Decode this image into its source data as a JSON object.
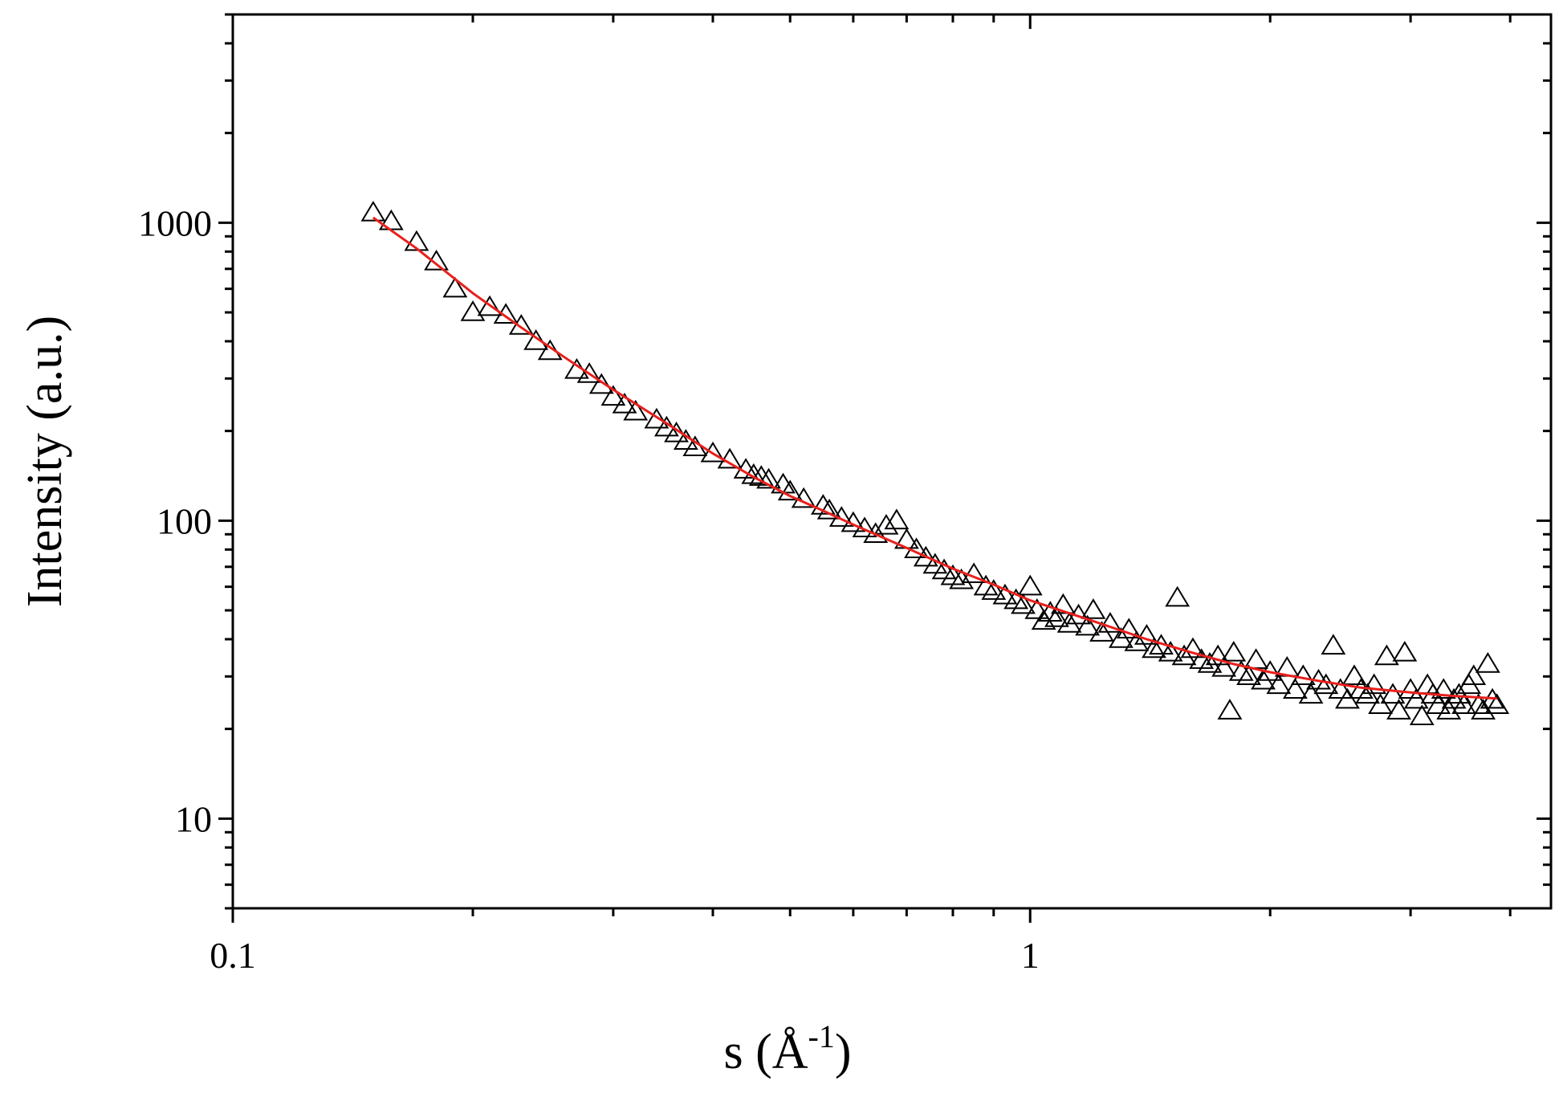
{
  "chart_data": {
    "type": "scatter",
    "title": "",
    "xlabel": "s (Å",
    "xlabel_sup": "-1",
    "xlabel_close": ")",
    "ylabel": "Intensity (a.u.)",
    "xscale": "log",
    "yscale": "log",
    "xlim": [
      0.1,
      4.5
    ],
    "ylim": [
      5,
      5000
    ],
    "grid": false,
    "legend": "none",
    "x_ticks": [
      {
        "value": 0.1,
        "label": "0.1"
      },
      {
        "value": 1,
        "label": "1"
      }
    ],
    "y_ticks": [
      {
        "value": 10,
        "label": "10"
      },
      {
        "value": 100,
        "label": "100"
      },
      {
        "value": 1000,
        "label": "1000"
      }
    ],
    "series": [
      {
        "kind": "scatter",
        "marker": "open-triangle",
        "color": "#000000",
        "points": [
          [
            0.15,
            1080
          ],
          [
            0.158,
            1010
          ],
          [
            0.17,
            860
          ],
          [
            0.18,
            740
          ],
          [
            0.19,
            600
          ],
          [
            0.2,
            500
          ],
          [
            0.21,
            520
          ],
          [
            0.22,
            490
          ],
          [
            0.23,
            450
          ],
          [
            0.24,
            400
          ],
          [
            0.25,
            370
          ],
          [
            0.27,
            320
          ],
          [
            0.28,
            310
          ],
          [
            0.29,
            285
          ],
          [
            0.3,
            260
          ],
          [
            0.31,
            245
          ],
          [
            0.32,
            232
          ],
          [
            0.34,
            218
          ],
          [
            0.35,
            205
          ],
          [
            0.36,
            196
          ],
          [
            0.37,
            185
          ],
          [
            0.38,
            176
          ],
          [
            0.4,
            168
          ],
          [
            0.42,
            160
          ],
          [
            0.44,
            148
          ],
          [
            0.45,
            142
          ],
          [
            0.46,
            140
          ],
          [
            0.47,
            137
          ],
          [
            0.49,
            132
          ],
          [
            0.5,
            125
          ],
          [
            0.52,
            118
          ],
          [
            0.55,
            112
          ],
          [
            0.56,
            108
          ],
          [
            0.58,
            102
          ],
          [
            0.6,
            98
          ],
          [
            0.62,
            94
          ],
          [
            0.64,
            90
          ],
          [
            0.66,
            96
          ],
          [
            0.68,
            100
          ],
          [
            0.7,
            86
          ],
          [
            0.72,
            80
          ],
          [
            0.74,
            75
          ],
          [
            0.76,
            71
          ],
          [
            0.78,
            68
          ],
          [
            0.8,
            65
          ],
          [
            0.82,
            63
          ],
          [
            0.85,
            66
          ],
          [
            0.88,
            60
          ],
          [
            0.9,
            58
          ],
          [
            0.93,
            56
          ],
          [
            0.96,
            54
          ],
          [
            0.98,
            52
          ],
          [
            1.0,
            60
          ],
          [
            1.02,
            50
          ],
          [
            1.04,
            46
          ],
          [
            1.06,
            49
          ],
          [
            1.08,
            47
          ],
          [
            1.1,
            52
          ],
          [
            1.12,
            45
          ],
          [
            1.15,
            48
          ],
          [
            1.18,
            44
          ],
          [
            1.2,
            50
          ],
          [
            1.23,
            42
          ],
          [
            1.26,
            45
          ],
          [
            1.3,
            40
          ],
          [
            1.33,
            43
          ],
          [
            1.36,
            39
          ],
          [
            1.4,
            41
          ],
          [
            1.43,
            37
          ],
          [
            1.46,
            38
          ],
          [
            1.5,
            36
          ],
          [
            1.53,
            55
          ],
          [
            1.56,
            35
          ],
          [
            1.6,
            37
          ],
          [
            1.64,
            34
          ],
          [
            1.68,
            33
          ],
          [
            1.72,
            35
          ],
          [
            1.75,
            32
          ],
          [
            1.78,
            23
          ],
          [
            1.8,
            36
          ],
          [
            1.84,
            31
          ],
          [
            1.88,
            30
          ],
          [
            1.92,
            34
          ],
          [
            1.96,
            29
          ],
          [
            2.0,
            31
          ],
          [
            2.05,
            28
          ],
          [
            2.1,
            32
          ],
          [
            2.15,
            27
          ],
          [
            2.2,
            30
          ],
          [
            2.25,
            26
          ],
          [
            2.3,
            29
          ],
          [
            2.35,
            28
          ],
          [
            2.4,
            38
          ],
          [
            2.45,
            27
          ],
          [
            2.5,
            25
          ],
          [
            2.55,
            30
          ],
          [
            2.6,
            27
          ],
          [
            2.65,
            26
          ],
          [
            2.7,
            28
          ],
          [
            2.75,
            24
          ],
          [
            2.8,
            35
          ],
          [
            2.85,
            26
          ],
          [
            2.9,
            23
          ],
          [
            2.95,
            36
          ],
          [
            3.0,
            27
          ],
          [
            3.05,
            25
          ],
          [
            3.1,
            22
          ],
          [
            3.15,
            28
          ],
          [
            3.2,
            26
          ],
          [
            3.25,
            24
          ],
          [
            3.3,
            27
          ],
          [
            3.35,
            23
          ],
          [
            3.4,
            25
          ],
          [
            3.45,
            26
          ],
          [
            3.5,
            24
          ],
          [
            3.55,
            28
          ],
          [
            3.6,
            30
          ],
          [
            3.65,
            24
          ],
          [
            3.7,
            23
          ],
          [
            3.75,
            33
          ],
          [
            3.8,
            25
          ],
          [
            3.85,
            24
          ]
        ]
      },
      {
        "kind": "line",
        "color": "#e8201c",
        "points": [
          [
            0.15,
            1040
          ],
          [
            0.17,
            820
          ],
          [
            0.2,
            580
          ],
          [
            0.23,
            445
          ],
          [
            0.26,
            355
          ],
          [
            0.3,
            275
          ],
          [
            0.35,
            212
          ],
          [
            0.4,
            168
          ],
          [
            0.45,
            140
          ],
          [
            0.5,
            121
          ],
          [
            0.55,
            108
          ],
          [
            0.6,
            97
          ],
          [
            0.7,
            81
          ],
          [
            0.8,
            69
          ],
          [
            0.9,
            61
          ],
          [
            1.0,
            54
          ],
          [
            1.2,
            46
          ],
          [
            1.4,
            40
          ],
          [
            1.6,
            36
          ],
          [
            1.8,
            33
          ],
          [
            2.0,
            31
          ],
          [
            2.3,
            29
          ],
          [
            2.6,
            27.5
          ],
          [
            3.0,
            26.5
          ],
          [
            3.4,
            25.8
          ],
          [
            3.85,
            25.3
          ]
        ]
      }
    ]
  }
}
